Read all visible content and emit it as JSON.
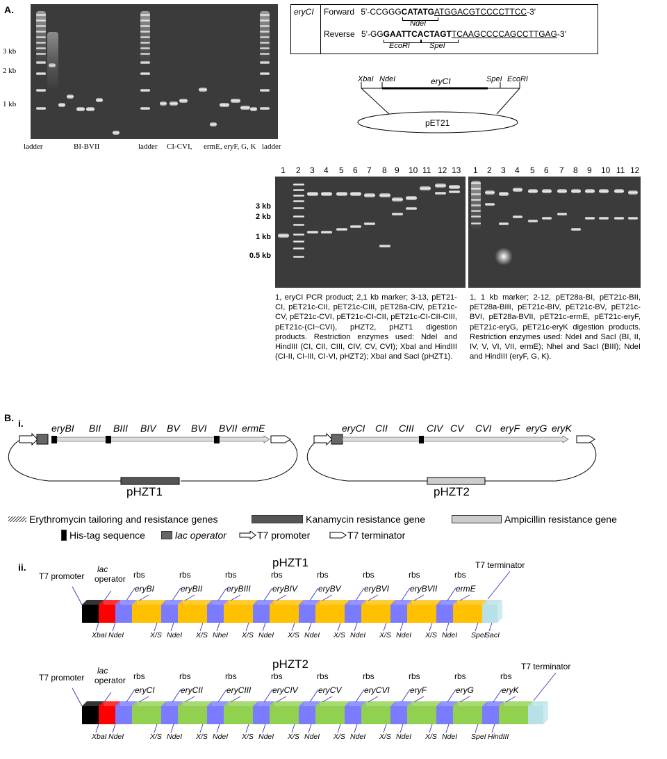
{
  "panelA": {
    "label": "A.",
    "gel1": {
      "size_labels": [
        "3 kb",
        "2 kb",
        "1 kb"
      ],
      "bottom_labels": [
        "ladder",
        "BI-BVII",
        "ladder",
        "CI-CVI,",
        "ermE, eryF, G, K",
        "ladder"
      ]
    },
    "primer": {
      "gene": "eryCI",
      "forward_label": "Forward",
      "forward_prefix": "5'-CCGGG",
      "forward_site": "CATATG",
      "forward_rest": "ATGGACGTCCCCTTCC",
      "forward_end": "-3'",
      "forward_enzyme": "NdeI",
      "reverse_label": "Reverse",
      "reverse_prefix": "5'-GG",
      "reverse_site1": "GAATTC",
      "reverse_site2": "ACTAGT",
      "reverse_rest": "TCAAGCCCCAGCCTTGAG",
      "reverse_end": "-3'",
      "reverse_enzyme1": "EcoRI",
      "reverse_enzyme2": "SpeI"
    },
    "vector": {
      "xba": "XbaI",
      "nde": "NdeI",
      "gene": "eryCI",
      "spe": "SpeI",
      "eco": "EcoRI",
      "name": "pET21"
    },
    "gel2": {
      "lanes": [
        "1",
        "2",
        "3",
        "4",
        "5",
        "6",
        "7",
        "8",
        "9",
        "10",
        "11",
        "12",
        "13"
      ],
      "size_labels": [
        "3 kb",
        "2 kb",
        "1 kb",
        "0.5 kb"
      ]
    },
    "gel3": {
      "lanes": [
        "1",
        "2",
        "3",
        "4",
        "5",
        "6",
        "7",
        "8",
        "9",
        "10",
        "11",
        "12"
      ]
    },
    "caption_left": "1, eryCI PCR product; 2,1 kb marker; 3-13, pET21-CI, pET21c-CII, pET21c-CIII, pET28a-CIV, pET21c-CV, pET21c-CVI, pET21c-CI-CII, pET21c-CI-CII-CIII, pET21c-(CI~CVI), pHZT2, pHZT1 digestion products. Restriction enzymes used: NdeI and HindIII (CI, CII, CIII, CIV, CV, CVI); XbaI and HindIII (CI-II, CI-III, CI-VI, pHZT2); XbaI and SacI (pHZT1).",
    "caption_right": "1, 1 kb marker; 2-12, pET28a-BI, pET21c-BII, pET28a-BIII, pET21c-BIV, pET21c-BV, pET21c-BVI, pET28a-BVII, pET21c-ermE, pET21c-eryF, pET21c-eryG, pET21c-eryK digestion products. Restriction enzymes used: NdeI and SacI (BI, II, IV, V, VI, VII, ermE); NheI and SacI (BIII); NdeI and HindIII (eryF, G, K)."
  },
  "panelB": {
    "label": "B.",
    "sub_i": "i.",
    "sub_ii": "ii.",
    "plasmid1": {
      "genes": [
        "eryBI",
        "BII",
        "BIII",
        "BIV",
        "BV",
        "BVI",
        "BVII",
        "ermE"
      ],
      "name": "pHZT1"
    },
    "plasmid2": {
      "genes": [
        "eryCI",
        "CII",
        "CIII",
        "CIV",
        "CV",
        "CVI",
        "eryF",
        "eryG",
        "eryK"
      ],
      "name": "pHZT2"
    },
    "legend": {
      "tailoring": "Erythromycin  tailoring and resistance genes",
      "kan": "Kanamycin resistance gene",
      "amp": "Ampicillin resistance gene",
      "his": "His-tag sequence",
      "lac": "lac operator",
      "t7p": "T7 promoter",
      "t7t": "T7 terminator"
    },
    "construct1": {
      "title": "pHZT1",
      "t7promoter": "T7 promoter",
      "lac": "lac",
      "operator": "operator",
      "rbs": "rbs",
      "t7terminator": "T7 terminator",
      "genes": [
        "eryBI",
        "eryBII",
        "eryBIII",
        "eryBIV",
        "eryBV",
        "eryBVI",
        "eryBVII",
        "ermE"
      ],
      "sites": [
        "XbaI",
        "NdeI",
        "X/S",
        "NdeI",
        "X/S",
        "NheI",
        "X/S",
        "NdeI",
        "X/S",
        "NdeI",
        "X/S",
        "NdeI",
        "X/S",
        "NdeI",
        "X/S",
        "NdeI",
        "SpeI",
        "SacI"
      ]
    },
    "construct2": {
      "title": "pHZT2",
      "t7promoter": "T7 promoter",
      "lac": "lac",
      "operator": "operator",
      "rbs": "rbs",
      "t7terminator": "T7 terminator",
      "genes": [
        "eryCI",
        "eryCII",
        "eryCIII",
        "eryCIV",
        "eryCV",
        "eryCVI",
        "eryF",
        "eryG",
        "eryK"
      ],
      "sites": [
        "XbaI",
        "NdeI",
        "X/S",
        "NdeI",
        "X/S",
        "NdeI",
        "X/S",
        "NdeI",
        "X/S",
        "NdeI",
        "X/S",
        "NdeI",
        "X/S",
        "NdeI",
        "X/S",
        "NdeI",
        "SpeI",
        "HindIII"
      ]
    },
    "colors": {
      "black": "#000000",
      "lac": "#ff0000",
      "rbs": "#7b7bff",
      "gene1": "#ffc000",
      "gene2": "#92d050",
      "terminator": "#b7e1e6"
    }
  }
}
